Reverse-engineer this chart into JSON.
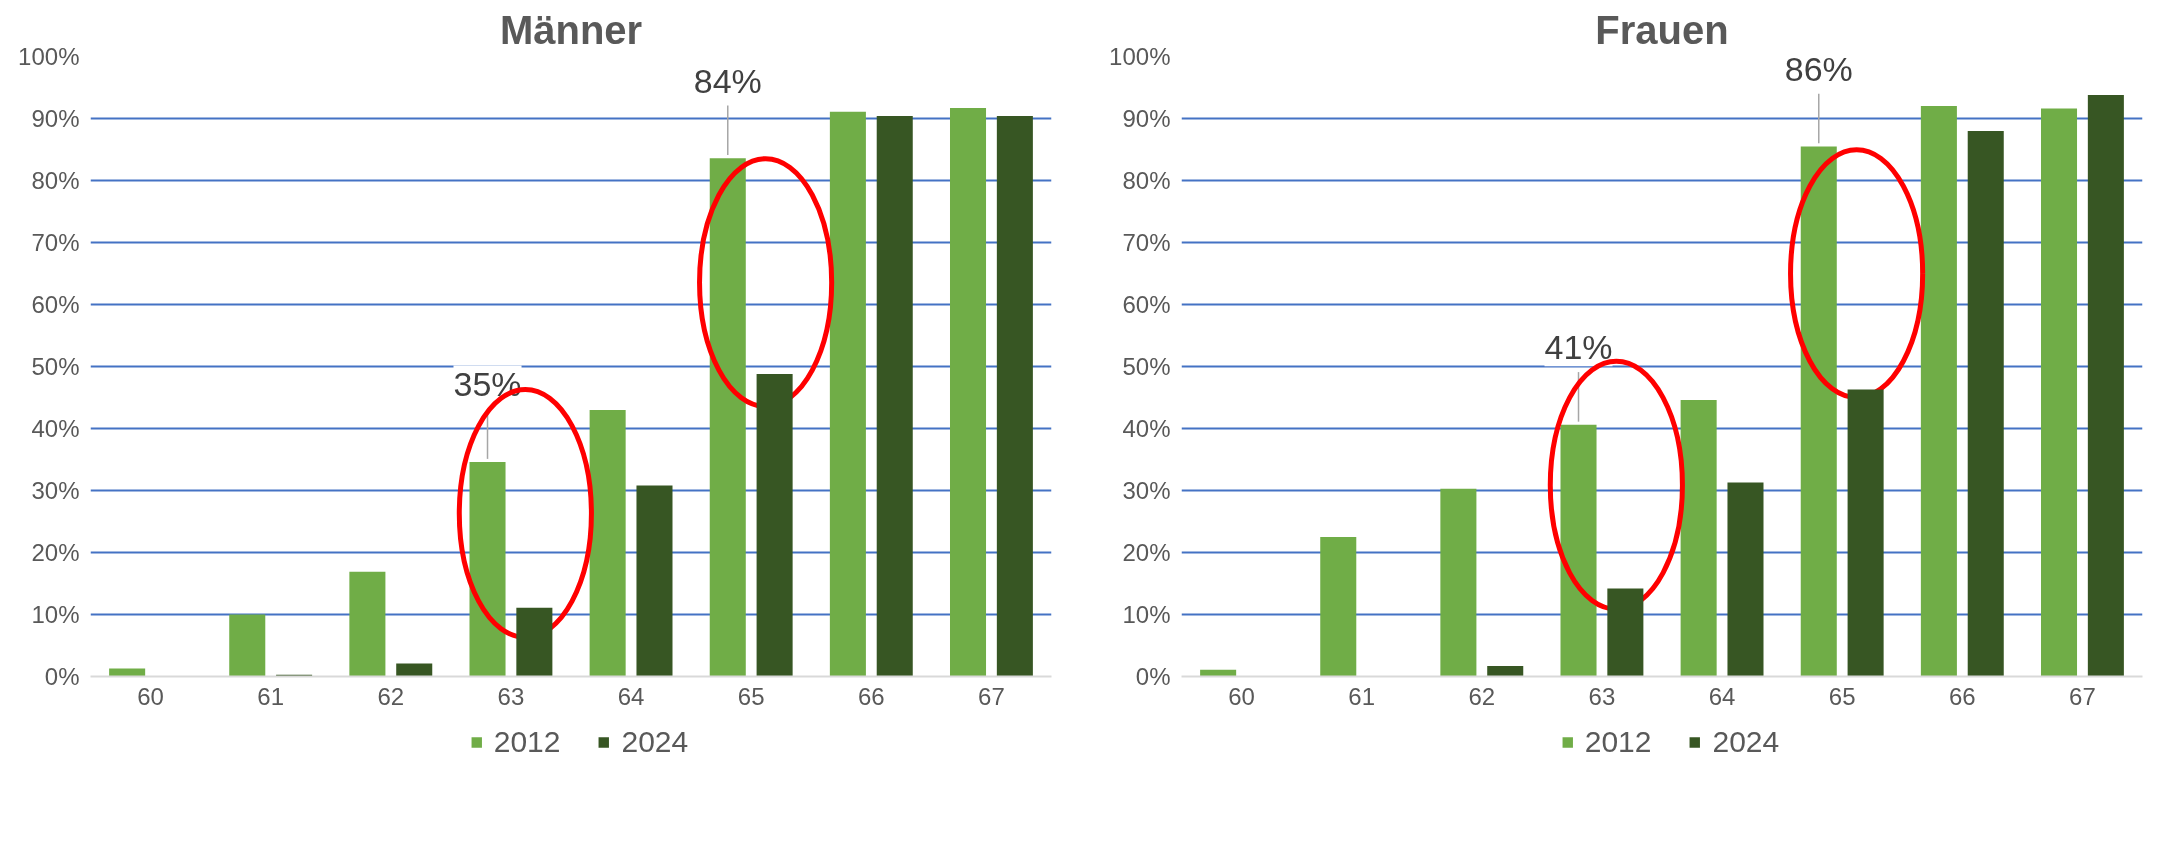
{
  "chart_data": [
    {
      "type": "bar",
      "title": "Männer",
      "categories": [
        "60",
        "61",
        "62",
        "63",
        "64",
        "65",
        "66",
        "67"
      ],
      "series": [
        {
          "name": "2012",
          "color": "#70ad47",
          "values": [
            1.3,
            10.0,
            16.9,
            34.6,
            43.0,
            83.6,
            91.1,
            91.7
          ],
          "value_labels": [
            null,
            null,
            null,
            "35%",
            null,
            "84%",
            null,
            null
          ]
        },
        {
          "name": "2024",
          "color": "#375623",
          "values": [
            0,
            0.3,
            2.1,
            11.1,
            30.8,
            48.8,
            90.4,
            90.4
          ]
        }
      ],
      "ylim": [
        0,
        100
      ],
      "yticks": [
        {
          "value": 0,
          "label": "0%"
        },
        {
          "value": 10,
          "label": "10%"
        },
        {
          "value": 20,
          "label": "20%"
        },
        {
          "value": 30,
          "label": "30%"
        },
        {
          "value": 40,
          "label": "40%"
        },
        {
          "value": 50,
          "label": "50%"
        },
        {
          "value": 60,
          "label": "60%"
        },
        {
          "value": 70,
          "label": "70%"
        },
        {
          "value": 80,
          "label": "80%"
        },
        {
          "value": 90,
          "label": "90%"
        },
        {
          "value": 100,
          "label": "100%"
        }
      ],
      "grid": "y",
      "legend": "bottom"
    },
    {
      "type": "bar",
      "title": "Frauen",
      "categories": [
        "60",
        "61",
        "62",
        "63",
        "64",
        "65",
        "66",
        "67"
      ],
      "series": [
        {
          "name": "2012",
          "color": "#70ad47",
          "values": [
            1.1,
            22.5,
            30.3,
            40.6,
            44.6,
            85.5,
            92.0,
            91.6
          ],
          "value_labels": [
            null,
            null,
            null,
            "41%",
            null,
            "86%",
            null,
            null
          ]
        },
        {
          "name": "2024",
          "color": "#375623",
          "values": [
            0,
            0,
            1.7,
            14.2,
            31.3,
            46.3,
            88.0,
            93.8
          ]
        }
      ],
      "ylim": [
        0,
        100
      ],
      "yticks": [
        {
          "value": 0,
          "label": "0%"
        },
        {
          "value": 10,
          "label": "10%"
        },
        {
          "value": 20,
          "label": "20%"
        },
        {
          "value": 30,
          "label": "30%"
        },
        {
          "value": 40,
          "label": "40%"
        },
        {
          "value": 50,
          "label": "50%"
        },
        {
          "value": 60,
          "label": "60%"
        },
        {
          "value": 70,
          "label": "70%"
        },
        {
          "value": 80,
          "label": "80%"
        },
        {
          "value": 90,
          "label": "90%"
        },
        {
          "value": 100,
          "label": "100%"
        }
      ],
      "grid": "y",
      "legend": "bottom"
    }
  ]
}
